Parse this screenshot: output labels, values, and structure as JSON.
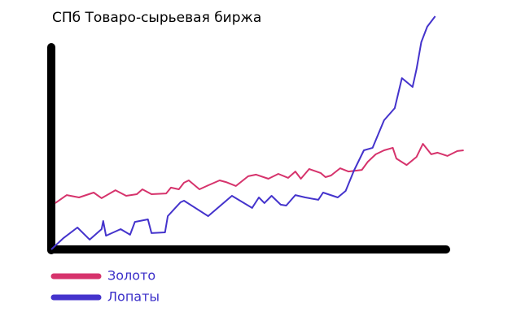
{
  "chart_data": {
    "type": "line",
    "title": "СПб Товаро-сырьевая биржа",
    "xlim": [
      0,
      105
    ],
    "ylim": [
      0,
      100
    ],
    "series": [
      {
        "name": "Золото",
        "color": "#d6336c",
        "x": [
          1.0,
          3.9,
          7.0,
          10.7,
          12.7,
          16.2,
          18.9,
          21.6,
          23.0,
          25.3,
          29.0,
          30.2,
          32.2,
          33.5,
          34.7,
          37.4,
          39.6,
          42.5,
          44.1,
          46.6,
          49.7,
          51.7,
          54.8,
          57.3,
          59.8,
          61.6,
          63.0,
          65.1,
          68.0,
          69.2,
          70.6,
          72.9,
          75.0,
          78.4,
          79.9,
          81.9,
          84.0,
          86.2,
          87.1,
          89.7,
          92.2,
          93.8,
          95.9,
          97.5,
          100.0,
          102.5,
          104.1
        ],
        "values": [
          19.9,
          23.3,
          22.3,
          24.4,
          22.0,
          25.4,
          23.0,
          23.7,
          25.8,
          23.7,
          24.0,
          26.5,
          25.8,
          28.6,
          29.6,
          25.8,
          27.5,
          29.6,
          28.9,
          27.2,
          31.4,
          32.1,
          30.3,
          32.4,
          30.7,
          33.4,
          30.3,
          34.5,
          32.8,
          31.0,
          31.7,
          34.8,
          33.4,
          34.1,
          37.6,
          40.8,
          42.5,
          43.6,
          39.0,
          36.2,
          39.7,
          45.3,
          40.8,
          41.5,
          40.1,
          42.2,
          42.5
        ]
      },
      {
        "name": "Лопаты",
        "color": "#4433cc",
        "x": [
          0,
          3.1,
          6.6,
          9.7,
          12.7,
          13.1,
          13.8,
          17.5,
          19.9,
          21.1,
          24.4,
          25.3,
          28.7,
          29.4,
          32.6,
          33.5,
          39.6,
          45.6,
          50.7,
          52.4,
          53.8,
          55.6,
          57.9,
          59.3,
          61.6,
          64.1,
          67.4,
          68.6,
          72.3,
          74.3,
          76.4,
          78.9,
          81.1,
          84.0,
          86.7,
          88.5,
          91.2,
          92.2,
          93.4,
          94.9,
          96.9
        ],
        "values": [
          0,
          4.9,
          9.4,
          4.2,
          8.7,
          12.2,
          5.9,
          8.7,
          6.3,
          11.8,
          12.9,
          7.0,
          7.3,
          14.3,
          20.2,
          20.9,
          14.3,
          23.0,
          17.8,
          22.3,
          19.9,
          23.0,
          19.2,
          18.8,
          23.3,
          22.3,
          21.3,
          24.4,
          22.3,
          25.1,
          33.8,
          42.5,
          43.6,
          55.4,
          60.6,
          73.5,
          69.7,
          77.4,
          88.9,
          95.5,
          100.0
        ]
      }
    ]
  }
}
